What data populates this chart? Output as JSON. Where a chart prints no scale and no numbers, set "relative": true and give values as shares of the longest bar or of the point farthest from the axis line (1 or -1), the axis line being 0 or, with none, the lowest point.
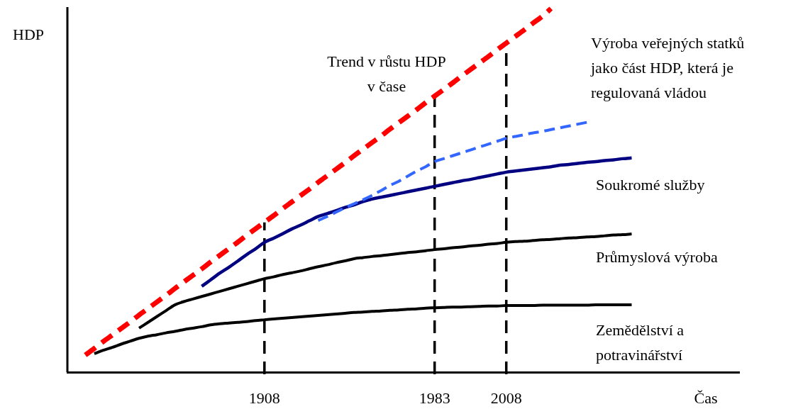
{
  "chart_data": {
    "type": "line",
    "xlabel": "Čas",
    "ylabel": "HDP",
    "relative": true,
    "categories": [
      null,
      null,
      null,
      null,
      null,
      null,
      null,
      null,
      null,
      null,
      null,
      null,
      null,
      null,
      null,
      null,
      null,
      null,
      null,
      null,
      null,
      null,
      "1908",
      null,
      null,
      null,
      null,
      null,
      null,
      null,
      null,
      null,
      null,
      null,
      null,
      null,
      null,
      null,
      null,
      null,
      null,
      "1983",
      null,
      null,
      null,
      null,
      null,
      null,
      null,
      "2008",
      null,
      null,
      null,
      null,
      null,
      null,
      null,
      null,
      null,
      null,
      null,
      null,
      null,
      null,
      null,
      null,
      null,
      null,
      null,
      null,
      null,
      null,
      null,
      null,
      null,
      null
    ],
    "grid": false,
    "legend": false,
    "marker": "none",
    "ref_lines": [
      {
        "axis": "x",
        "value": "1908",
        "color": "#000000",
        "line_style": "dashed"
      },
      {
        "axis": "x",
        "value": "1983",
        "color": "#000000",
        "line_style": "dashed"
      },
      {
        "axis": "x",
        "value": "2008",
        "color": "#000000",
        "line_style": "dashed"
      }
    ],
    "series": [
      {
        "name": "Trend v růstu HDP v čase",
        "color": "#ff0000",
        "line_style": "dashed",
        "values": [
          null,
          null,
          0.047,
          0.065,
          0.084,
          0.102,
          0.12,
          0.138,
          0.157,
          0.175,
          0.193,
          0.211,
          0.23,
          0.248,
          0.266,
          0.284,
          0.303,
          0.321,
          0.339,
          0.357,
          0.376,
          0.394,
          0.412,
          0.43,
          0.449,
          0.467,
          0.485,
          0.503,
          0.522,
          0.54,
          0.558,
          0.576,
          0.595,
          0.613,
          0.631,
          0.649,
          0.668,
          0.686,
          0.704,
          0.722,
          0.741,
          0.759,
          0.777,
          0.795,
          0.814,
          0.832,
          0.85,
          0.868,
          0.887,
          0.905,
          0.923,
          0.941,
          0.96,
          0.978,
          1.0,
          null,
          null,
          null,
          null,
          null,
          null,
          null,
          null,
          null,
          null,
          null,
          null,
          null,
          null,
          null,
          null,
          null,
          null,
          null,
          null,
          null
        ]
      },
      {
        "name": "Výroba veřejných statků jako část HDP, která je regulovaná vládou",
        "color": "#3366ff",
        "line_style": "dashed",
        "values": [
          null,
          null,
          null,
          null,
          null,
          null,
          null,
          null,
          null,
          null,
          null,
          null,
          null,
          null,
          null,
          null,
          null,
          null,
          null,
          null,
          null,
          null,
          null,
          null,
          null,
          null,
          null,
          null,
          0.417,
          0.428,
          0.44,
          0.452,
          0.463,
          0.474,
          0.486,
          0.499,
          0.513,
          0.525,
          0.539,
          0.553,
          0.565,
          0.579,
          0.587,
          0.595,
          0.603,
          0.611,
          0.619,
          0.627,
          0.635,
          0.643,
          0.648,
          0.653,
          0.658,
          0.662,
          0.667,
          0.672,
          0.677,
          0.682,
          0.687,
          null,
          null,
          null,
          null,
          null,
          null,
          null,
          null,
          null,
          null,
          null,
          null,
          null,
          null,
          null,
          null,
          null
        ]
      },
      {
        "name": "Soukromé služby",
        "color": "#000080",
        "line_style": "solid",
        "values": [
          null,
          null,
          null,
          null,
          null,
          null,
          null,
          null,
          null,
          null,
          null,
          null,
          null,
          null,
          null,
          0.236,
          0.254,
          0.272,
          0.288,
          0.305,
          0.323,
          0.339,
          0.357,
          0.368,
          0.38,
          0.393,
          0.404,
          0.416,
          0.428,
          0.436,
          0.444,
          0.453,
          0.46,
          0.469,
          0.476,
          0.481,
          0.486,
          0.491,
          0.496,
          0.501,
          0.506,
          0.511,
          0.516,
          0.521,
          0.526,
          0.53,
          0.535,
          0.54,
          0.545,
          0.55,
          0.553,
          0.556,
          0.559,
          0.562,
          0.565,
          0.569,
          0.571,
          0.574,
          0.577,
          0.579,
          0.582,
          0.584,
          0.587,
          0.589,
          null,
          null,
          null,
          null,
          null,
          null,
          null,
          null,
          null,
          null,
          null,
          null
        ]
      },
      {
        "name": "Průmyslová výroba",
        "color": "#000000",
        "line_style": "solid",
        "values": [
          null,
          null,
          null,
          null,
          null,
          null,
          null,
          null,
          0.121,
          0.137,
          0.153,
          0.169,
          0.185,
          0.194,
          0.201,
          0.208,
          0.215,
          0.222,
          0.229,
          0.236,
          0.243,
          0.25,
          0.257,
          0.262,
          0.268,
          0.273,
          0.278,
          0.284,
          0.29,
          0.295,
          0.301,
          0.306,
          0.312,
          0.315,
          0.318,
          0.32,
          0.323,
          0.326,
          0.329,
          0.331,
          0.334,
          0.337,
          0.339,
          0.342,
          0.344,
          0.347,
          0.349,
          0.352,
          0.354,
          0.357,
          0.359,
          0.36,
          0.362,
          0.364,
          0.365,
          0.367,
          0.369,
          0.37,
          0.372,
          0.373,
          0.375,
          0.377,
          0.378,
          0.38,
          null,
          null,
          null,
          null,
          null,
          null,
          null,
          null,
          null,
          null,
          null,
          null
        ]
      },
      {
        "name": "Zemědělství a potravinářství",
        "color": "#000000",
        "line_style": "solid",
        "values": [
          null,
          null,
          null,
          0.051,
          0.06,
          0.068,
          0.077,
          0.085,
          0.093,
          0.099,
          0.103,
          0.108,
          0.112,
          0.117,
          0.121,
          0.125,
          0.13,
          0.133,
          0.135,
          0.137,
          0.139,
          0.142,
          0.144,
          0.146,
          0.148,
          0.15,
          0.152,
          0.154,
          0.156,
          0.158,
          0.16,
          0.162,
          0.164,
          0.165,
          0.167,
          0.168,
          0.17,
          0.171,
          0.173,
          0.174,
          0.176,
          0.177,
          0.178,
          0.179,
          0.179,
          0.18,
          0.181,
          0.182,
          0.182,
          0.183,
          0.183,
          0.183,
          0.183,
          0.184,
          0.184,
          0.184,
          0.184,
          0.184,
          0.184,
          0.185,
          0.185,
          0.185,
          0.185,
          0.185,
          null,
          null,
          null,
          null,
          null,
          null,
          null,
          null,
          null,
          null,
          null,
          null
        ]
      }
    ]
  }
}
